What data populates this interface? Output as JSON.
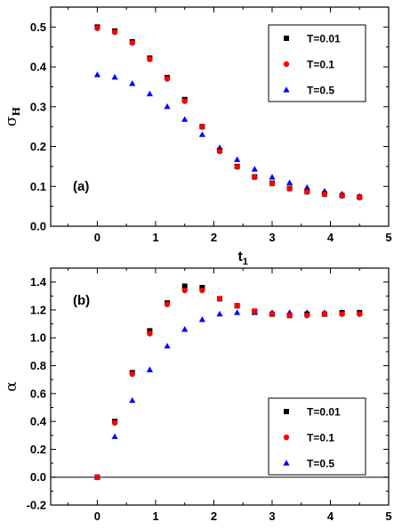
{
  "chart_data": [
    {
      "type": "scatter",
      "panel_label": "(a)",
      "ylabel_symbol": "σ",
      "ylabel_subscript": "H",
      "xlabel_main": "t",
      "xlabel_subscript": "1",
      "xlim": [
        -0.8,
        5
      ],
      "ylim": [
        0,
        0.55
      ],
      "xticks": [
        "0",
        "1",
        "2",
        "3",
        "4",
        "5"
      ],
      "yticks": [
        "0.0",
        "0.1",
        "0.2",
        "0.3",
        "0.4",
        "0.5"
      ],
      "grid": false,
      "legend_position": "top-right",
      "series": [
        {
          "name": "T=0.01",
          "marker": "square",
          "color": "#000000",
          "x": [
            0,
            0.3,
            0.6,
            0.9,
            1.2,
            1.5,
            1.8,
            2.1,
            2.4,
            2.7,
            3.0,
            3.3,
            3.6,
            3.9,
            4.2,
            4.5
          ],
          "y": [
            0.5,
            0.49,
            0.463,
            0.422,
            0.373,
            0.318,
            0.25,
            0.19,
            0.15,
            0.124,
            0.108,
            0.095,
            0.087,
            0.081,
            0.077,
            0.073
          ]
        },
        {
          "name": "T=0.1",
          "marker": "circle",
          "color": "#ff0000",
          "x": [
            0,
            0.3,
            0.6,
            0.9,
            1.2,
            1.5,
            1.8,
            2.1,
            2.4,
            2.7,
            3.0,
            3.3,
            3.6,
            3.9,
            4.2,
            4.5
          ],
          "y": [
            0.497,
            0.487,
            0.46,
            0.419,
            0.37,
            0.314,
            0.249,
            0.188,
            0.149,
            0.123,
            0.107,
            0.094,
            0.086,
            0.08,
            0.076,
            0.072
          ]
        },
        {
          "name": "T=0.5",
          "marker": "triangle",
          "color": "#0000ff",
          "x": [
            0,
            0.3,
            0.6,
            0.9,
            1.2,
            1.5,
            1.8,
            2.1,
            2.4,
            2.7,
            3.0,
            3.3,
            3.6,
            3.9,
            4.2,
            4.5
          ],
          "y": [
            0.38,
            0.374,
            0.358,
            0.332,
            0.3,
            0.268,
            0.23,
            0.197,
            0.167,
            0.143,
            0.123,
            0.109,
            0.097,
            0.088,
            0.081,
            0.075
          ]
        }
      ]
    },
    {
      "type": "scatter",
      "panel_label": "(b)",
      "ylabel_symbol": "α",
      "ylabel_subscript": "",
      "xlabel_main": "t",
      "xlabel_subscript": "1",
      "xlim": [
        -0.8,
        5
      ],
      "ylim": [
        -0.2,
        1.5
      ],
      "xticks": [
        "0",
        "1",
        "2",
        "3",
        "4",
        "5"
      ],
      "yticks": [
        "-0.2",
        "0.0",
        "0.2",
        "0.4",
        "0.6",
        "0.8",
        "1.0",
        "1.2",
        "1.4"
      ],
      "grid": false,
      "zero_line": true,
      "legend_position": "bottom-right",
      "series": [
        {
          "name": "T=0.01",
          "marker": "square",
          "color": "#000000",
          "x": [
            0,
            0.3,
            0.6,
            0.9,
            1.2,
            1.5,
            1.8,
            2.1,
            2.4,
            2.7,
            3.0,
            3.3,
            3.6,
            3.9,
            4.2,
            4.5
          ],
          "y": [
            0.0,
            0.4,
            0.75,
            1.05,
            1.25,
            1.37,
            1.36,
            1.28,
            1.23,
            1.19,
            1.17,
            1.16,
            1.17,
            1.17,
            1.18,
            1.18
          ]
        },
        {
          "name": "T=0.1",
          "marker": "circle",
          "color": "#ff0000",
          "x": [
            0,
            0.3,
            0.6,
            0.9,
            1.2,
            1.5,
            1.8,
            2.1,
            2.4,
            2.7,
            3.0,
            3.3,
            3.6,
            3.9,
            4.2,
            4.5
          ],
          "y": [
            0.0,
            0.39,
            0.74,
            1.03,
            1.24,
            1.34,
            1.34,
            1.28,
            1.23,
            1.19,
            1.17,
            1.16,
            1.16,
            1.17,
            1.17,
            1.17
          ]
        },
        {
          "name": "T=0.5",
          "marker": "triangle",
          "color": "#0000ff",
          "x": [
            0,
            0.3,
            0.6,
            0.9,
            1.2,
            1.5,
            1.8,
            2.1,
            2.4,
            2.7,
            3.0,
            3.3,
            3.6,
            3.9,
            4.2,
            4.5
          ],
          "y": [
            0.0,
            0.29,
            0.55,
            0.77,
            0.94,
            1.06,
            1.13,
            1.17,
            1.18,
            1.18,
            1.18,
            1.18,
            1.18,
            1.18,
            1.18,
            1.18
          ]
        }
      ]
    }
  ]
}
